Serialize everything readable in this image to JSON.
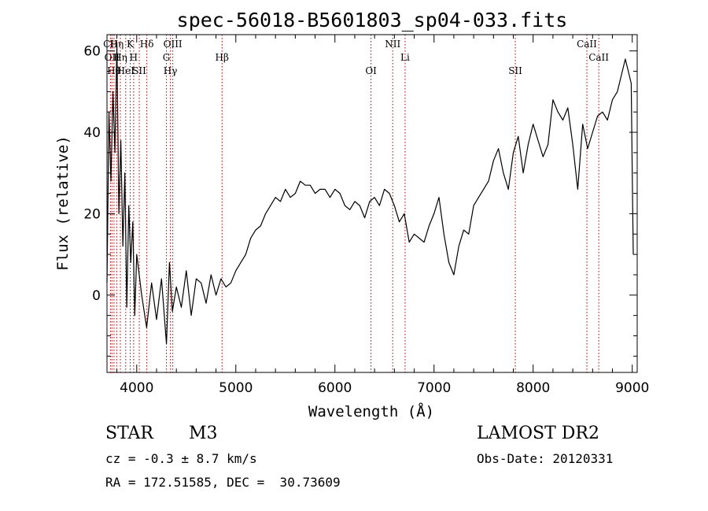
{
  "chart_data": {
    "type": "line",
    "title": "spec-56018-B5601803_sp04-033.fits",
    "xlabel": "Wavelength (Å)",
    "ylabel": "Flux (relative)",
    "xlim": [
      3700,
      9050
    ],
    "ylim": [
      -19,
      64
    ],
    "xticks": [
      4000,
      5000,
      6000,
      7000,
      8000,
      9000
    ],
    "yticks": [
      0,
      20,
      40,
      60
    ],
    "grid": false,
    "series": [
      {
        "x": [
          3700,
          3720,
          3740,
          3760,
          3780,
          3800,
          3820,
          3840,
          3860,
          3880,
          3900,
          3920,
          3940,
          3960,
          3980,
          4000,
          4050,
          4100,
          4150,
          4200,
          4250,
          4300,
          4330,
          4360,
          4400,
          4450,
          4500,
          4550,
          4600,
          4650,
          4700,
          4750,
          4800,
          4850,
          4900,
          4950,
          5000,
          5050,
          5100,
          5150,
          5200,
          5250,
          5300,
          5350,
          5400,
          5450,
          5500,
          5550,
          5600,
          5650,
          5700,
          5750,
          5800,
          5850,
          5900,
          5950,
          6000,
          6050,
          6100,
          6150,
          6200,
          6250,
          6300,
          6350,
          6400,
          6450,
          6500,
          6550,
          6600,
          6650,
          6700,
          6750,
          6800,
          6850,
          6900,
          6950,
          7000,
          7050,
          7100,
          7150,
          7200,
          7250,
          7300,
          7350,
          7400,
          7450,
          7500,
          7550,
          7600,
          7650,
          7700,
          7750,
          7800,
          7850,
          7900,
          7950,
          8000,
          8050,
          8100,
          8150,
          8200,
          8250,
          8300,
          8350,
          8400,
          8450,
          8500,
          8550,
          8600,
          8650,
          8700,
          8750,
          8800,
          8850,
          8900,
          8930,
          8960,
          8990,
          9000,
          9010
        ],
        "y": [
          3,
          45,
          28,
          50,
          35,
          62,
          20,
          38,
          12,
          30,
          -3,
          22,
          8,
          18,
          -5,
          10,
          0,
          -8,
          3,
          -6,
          4,
          -12,
          8,
          -4,
          2,
          -3,
          6,
          -5,
          4,
          3,
          -2,
          5,
          0,
          4,
          2,
          3,
          6,
          8,
          10,
          14,
          16,
          17,
          20,
          22,
          24,
          23,
          26,
          24,
          25,
          28,
          27,
          27,
          25,
          26,
          26,
          24,
          26,
          25,
          22,
          21,
          23,
          22,
          19,
          23,
          24,
          22,
          26,
          25,
          22,
          18,
          20,
          13,
          15,
          14,
          13,
          17,
          20,
          24,
          15,
          8,
          5,
          12,
          16,
          15,
          22,
          24,
          26,
          28,
          33,
          36,
          30,
          26,
          35,
          39,
          30,
          37,
          42,
          38,
          34,
          37,
          48,
          45,
          43,
          46,
          37,
          26,
          42,
          36,
          40,
          44,
          45,
          43,
          48,
          50,
          55,
          58,
          55,
          52,
          30,
          10
        ]
      }
    ],
    "lines": [
      {
        "wl": 3735,
        "name": "CII"
      },
      {
        "wl": 3750,
        "name": "OII"
      },
      {
        "wl": 3771,
        "name": "Hθ"
      },
      {
        "wl": 3798,
        "name": "Hη"
      },
      {
        "wl": 3835,
        "name": "Hη"
      },
      {
        "wl": 3889,
        "name": "HeI"
      },
      {
        "wl": 3934,
        "name": "K"
      },
      {
        "wl": 3969,
        "name": "H"
      },
      {
        "wl": 4026,
        "name": "SII"
      },
      {
        "wl": 4102,
        "name": "Hδ"
      },
      {
        "wl": 4300,
        "name": "G"
      },
      {
        "wl": 4340,
        "name": "Hγ"
      },
      {
        "wl": 4364,
        "name": "OIII"
      },
      {
        "wl": 4861,
        "name": "Hβ"
      },
      {
        "wl": 6364,
        "name": "OI"
      },
      {
        "wl": 6583,
        "name": "NII"
      },
      {
        "wl": 6708,
        "name": "Li"
      },
      {
        "wl": 7820,
        "name": "SII"
      },
      {
        "wl": 8542,
        "name": "CaII"
      },
      {
        "wl": 8662,
        "name": "CaII"
      }
    ],
    "line_color": "#a40000"
  },
  "info": {
    "object_class": "STAR",
    "subclass": "M3",
    "redshift": "cz = -0.3 ± 8.7 km/s",
    "coords": "RA = 172.51585, DEC =  30.73609",
    "survey": "LAMOST DR2",
    "obs_date": "Obs-Date: 20120331"
  }
}
